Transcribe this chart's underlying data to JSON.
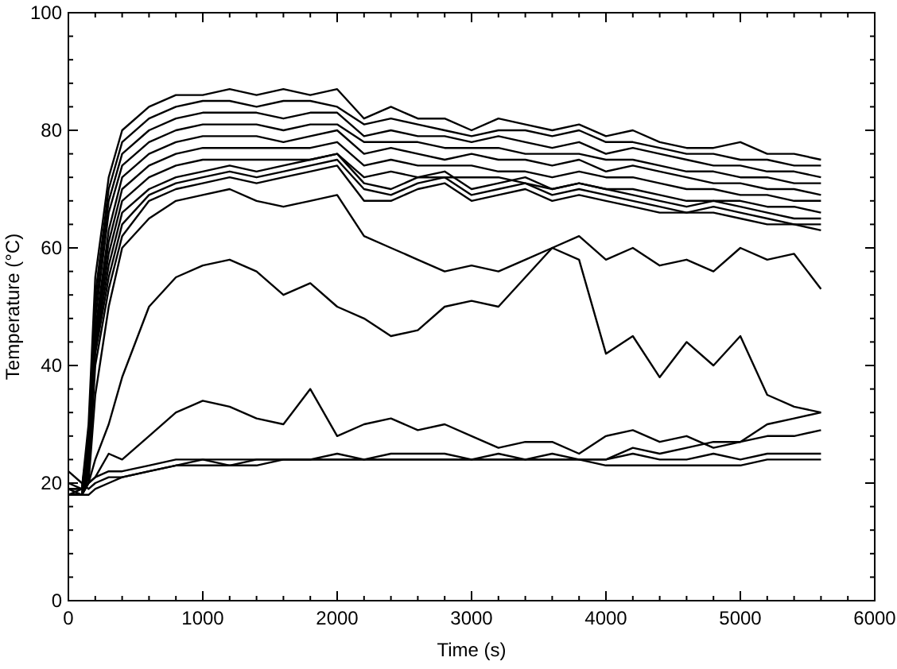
{
  "chart_data": {
    "type": "line",
    "xlabel": "Time (s)",
    "ylabel": "Temperature (°C)",
    "xlim": [
      0,
      6000
    ],
    "ylim": [
      0,
      100
    ],
    "xticks": [
      0,
      {
        "value": 200,
        "label": null
      },
      {
        "value": 400,
        "label": null
      },
      {
        "value": 600,
        "label": null
      },
      {
        "value": 800,
        "label": null
      },
      1000,
      {
        "value": 1200,
        "label": null
      },
      {
        "value": 1400,
        "label": null
      },
      {
        "value": 1600,
        "label": null
      },
      {
        "value": 1800,
        "label": null
      },
      2000,
      {
        "value": 2200,
        "label": null
      },
      {
        "value": 2400,
        "label": null
      },
      {
        "value": 2600,
        "label": null
      },
      {
        "value": 2800,
        "label": null
      },
      3000,
      {
        "value": 3200,
        "label": null
      },
      {
        "value": 3400,
        "label": null
      },
      {
        "value": 3600,
        "label": null
      },
      {
        "value": 3800,
        "label": null
      },
      4000,
      {
        "value": 4200,
        "label": null
      },
      {
        "value": 4400,
        "label": null
      },
      {
        "value": 4600,
        "label": null
      },
      {
        "value": 4800,
        "label": null
      },
      5000,
      {
        "value": 5200,
        "label": null
      },
      {
        "value": 5400,
        "label": null
      },
      {
        "value": 5600,
        "label": null
      },
      {
        "value": 5800,
        "label": null
      },
      6000
    ],
    "yticks": [
      0,
      {
        "value": 4,
        "label": null
      },
      {
        "value": 8,
        "label": null
      },
      {
        "value": 12,
        "label": null
      },
      {
        "value": 16,
        "label": null
      },
      20,
      {
        "value": 24,
        "label": null
      },
      {
        "value": 28,
        "label": null
      },
      {
        "value": 32,
        "label": null
      },
      {
        "value": 36,
        "label": null
      },
      40,
      {
        "value": 44,
        "label": null
      },
      {
        "value": 48,
        "label": null
      },
      {
        "value": 52,
        "label": null
      },
      {
        "value": 56,
        "label": null
      },
      60,
      {
        "value": 64,
        "label": null
      },
      {
        "value": 68,
        "label": null
      },
      {
        "value": 72,
        "label": null
      },
      {
        "value": 76,
        "label": null
      },
      80,
      {
        "value": 84,
        "label": null
      },
      {
        "value": 88,
        "label": null
      },
      {
        "value": 92,
        "label": null
      },
      {
        "value": 96,
        "label": null
      },
      100
    ],
    "grid": false,
    "marker": "none",
    "line_style": "solid",
    "x": [
      0,
      100,
      150,
      200,
      300,
      400,
      600,
      800,
      1000,
      1200,
      1400,
      1600,
      1800,
      2000,
      2200,
      2400,
      2600,
      2800,
      3000,
      3200,
      3400,
      3600,
      3800,
      4000,
      4200,
      4400,
      4600,
      4800,
      5000,
      5200,
      5400,
      5600
    ],
    "series": [
      {
        "color": "#000000",
        "values": [
          19,
          19,
          30,
          55,
          72,
          80,
          84,
          86,
          86,
          87,
          86,
          87,
          86,
          87,
          82,
          84,
          82,
          82,
          80,
          82,
          81,
          80,
          81,
          79,
          80,
          78,
          77,
          77,
          78,
          76,
          76,
          75
        ]
      },
      {
        "color": "#000000",
        "values": [
          19,
          19,
          28,
          52,
          70,
          78,
          82,
          84,
          85,
          85,
          84,
          85,
          85,
          84,
          81,
          82,
          81,
          80,
          79,
          80,
          80,
          79,
          80,
          78,
          78,
          77,
          76,
          76,
          75,
          75,
          74,
          74
        ]
      },
      {
        "color": "#000000",
        "values": [
          18,
          19,
          27,
          50,
          68,
          76,
          80,
          82,
          83,
          83,
          83,
          82,
          83,
          83,
          79,
          80,
          79,
          79,
          78,
          79,
          78,
          77,
          78,
          76,
          77,
          76,
          75,
          74,
          74,
          73,
          73,
          72
        ]
      },
      {
        "color": "#000000",
        "values": [
          18,
          18,
          26,
          48,
          66,
          74,
          78,
          80,
          81,
          81,
          81,
          80,
          81,
          81,
          78,
          78,
          78,
          77,
          77,
          77,
          76,
          76,
          76,
          75,
          75,
          74,
          73,
          73,
          72,
          72,
          71,
          71
        ]
      },
      {
        "color": "#000000",
        "values": [
          18,
          18,
          25,
          46,
          63,
          72,
          76,
          78,
          79,
          79,
          79,
          78,
          79,
          80,
          76,
          77,
          76,
          75,
          76,
          75,
          75,
          74,
          75,
          73,
          74,
          73,
          72,
          71,
          71,
          70,
          70,
          69
        ]
      },
      {
        "color": "#000000",
        "values": [
          18,
          18,
          24,
          45,
          61,
          70,
          74,
          76,
          77,
          77,
          77,
          77,
          77,
          78,
          74,
          75,
          74,
          74,
          74,
          73,
          73,
          72,
          73,
          72,
          72,
          71,
          70,
          70,
          69,
          69,
          68,
          68
        ]
      },
      {
        "color": "#000000",
        "values": [
          18,
          18,
          23,
          44,
          59,
          68,
          72,
          74,
          75,
          75,
          75,
          75,
          75,
          76,
          72,
          73,
          72,
          72,
          72,
          72,
          71,
          70,
          71,
          70,
          70,
          69,
          68,
          68,
          68,
          67,
          67,
          66
        ]
      },
      {
        "color": "#000000",
        "values": [
          18,
          18,
          22,
          43,
          57,
          66,
          70,
          72,
          73,
          74,
          73,
          74,
          75,
          76,
          71,
          70,
          72,
          73,
          70,
          71,
          72,
          70,
          71,
          70,
          69,
          68,
          67,
          68,
          67,
          66,
          65,
          65
        ]
      },
      {
        "color": "#000000",
        "values": [
          18,
          18,
          22,
          42,
          55,
          64,
          69,
          71,
          72,
          73,
          72,
          73,
          74,
          75,
          70,
          69,
          71,
          72,
          69,
          70,
          71,
          69,
          70,
          69,
          68,
          67,
          66,
          67,
          66,
          65,
          64,
          64
        ]
      },
      {
        "color": "#000000",
        "values": [
          18,
          18,
          21,
          40,
          53,
          62,
          68,
          70,
          71,
          72,
          71,
          72,
          73,
          74,
          68,
          68,
          70,
          71,
          68,
          69,
          70,
          68,
          69,
          68,
          67,
          66,
          66,
          66,
          65,
          64,
          64,
          63
        ]
      },
      {
        "color": "#000000",
        "values": [
          18,
          18,
          20,
          35,
          50,
          60,
          65,
          68,
          69,
          70,
          68,
          67,
          68,
          69,
          62,
          60,
          58,
          56,
          57,
          56,
          58,
          60,
          62,
          58,
          60,
          57,
          58,
          56,
          60,
          58,
          59,
          53
        ]
      },
      {
        "color": "#000000",
        "values": [
          18,
          18,
          20,
          24,
          30,
          38,
          50,
          55,
          57,
          58,
          56,
          52,
          54,
          50,
          48,
          45,
          46,
          50,
          51,
          50,
          55,
          60,
          58,
          42,
          45,
          38,
          44,
          40,
          45,
          35,
          33,
          32
        ]
      },
      {
        "color": "#000000",
        "values": [
          18,
          18,
          20,
          21,
          25,
          24,
          28,
          32,
          34,
          33,
          31,
          30,
          36,
          28,
          30,
          31,
          29,
          30,
          28,
          26,
          27,
          27,
          25,
          28,
          29,
          27,
          28,
          26,
          27,
          30,
          31,
          32
        ]
      },
      {
        "color": "#000000",
        "values": [
          20,
          19,
          20,
          21,
          22,
          22,
          23,
          24,
          24,
          23,
          24,
          24,
          24,
          25,
          24,
          25,
          25,
          25,
          24,
          25,
          24,
          25,
          24,
          24,
          26,
          25,
          26,
          27,
          27,
          28,
          28,
          29
        ]
      },
      {
        "color": "#000000",
        "values": [
          22,
          20,
          19,
          20,
          21,
          21,
          22,
          23,
          24,
          24,
          24,
          24,
          24,
          24,
          24,
          24,
          24,
          24,
          24,
          24,
          24,
          24,
          24,
          24,
          25,
          24,
          24,
          25,
          24,
          25,
          25,
          25
        ]
      },
      {
        "color": "#000000",
        "values": [
          19,
          18,
          18,
          19,
          20,
          21,
          22,
          23,
          23,
          23,
          23,
          24,
          24,
          24,
          24,
          24,
          24,
          24,
          24,
          24,
          24,
          24,
          24,
          23,
          23,
          23,
          23,
          23,
          23,
          24,
          24,
          24
        ]
      }
    ]
  }
}
